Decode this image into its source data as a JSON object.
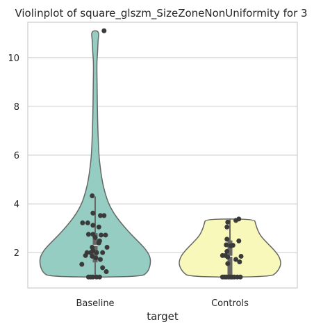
{
  "chart_data": {
    "type": "violin",
    "title": "Violinplot of square_glszm_SizeZoneNonUniformity for 3",
    "xlabel": "target",
    "ylabel": "",
    "categories": [
      "Baseline",
      "Controls"
    ],
    "ylim": [
      0.55,
      11.45
    ],
    "yticks": [
      2,
      4,
      6,
      8,
      10
    ],
    "grid": true,
    "colors": {
      "Baseline": "#96cdc2",
      "Controls": "#f8f8bb",
      "outline": "#666666",
      "points": "#3a3a3a",
      "box": "#666666"
    },
    "violins": [
      {
        "category": "Baseline",
        "halfwidth_profile": [
          [
            1.0,
            0.68
          ],
          [
            1.2,
            0.78
          ],
          [
            1.5,
            0.82
          ],
          [
            1.8,
            0.82
          ],
          [
            2.1,
            0.76
          ],
          [
            2.4,
            0.66
          ],
          [
            2.7,
            0.55
          ],
          [
            3.0,
            0.45
          ],
          [
            3.3,
            0.36
          ],
          [
            3.6,
            0.28
          ],
          [
            4.0,
            0.2
          ],
          [
            4.5,
            0.14
          ],
          [
            5.0,
            0.1
          ],
          [
            5.5,
            0.075
          ],
          [
            6.0,
            0.055
          ],
          [
            7.0,
            0.04
          ],
          [
            8.0,
            0.032
          ],
          [
            9.0,
            0.028
          ],
          [
            9.8,
            0.024
          ],
          [
            10.3,
            0.038
          ],
          [
            10.7,
            0.042
          ],
          [
            11.1,
            0.06
          ]
        ],
        "box": {
          "q1": 1.6,
          "median": 2.3,
          "q3": 2.8,
          "whisker_low": 1.0,
          "whisker_high": 4.3
        },
        "points": [
          [
            0.12,
            11.1
          ],
          [
            -0.04,
            4.33
          ],
          [
            -0.03,
            3.62
          ],
          [
            0.07,
            3.52
          ],
          [
            0.12,
            3.52
          ],
          [
            -0.17,
            3.22
          ],
          [
            -0.1,
            3.22
          ],
          [
            -0.03,
            3.12
          ],
          [
            0.05,
            3.05
          ],
          [
            -0.09,
            2.75
          ],
          [
            -0.03,
            2.75
          ],
          [
            0.08,
            2.72
          ],
          [
            0.14,
            2.72
          ],
          [
            0.0,
            2.62
          ],
          [
            0.06,
            2.48
          ],
          [
            0.05,
            2.4
          ],
          [
            -0.04,
            2.22
          ],
          [
            0.16,
            2.22
          ],
          [
            -0.03,
            2.08
          ],
          [
            -0.11,
            2.0
          ],
          [
            -0.06,
            2.0
          ],
          [
            0.02,
            2.0
          ],
          [
            0.1,
            2.0
          ],
          [
            -0.13,
            1.88
          ],
          [
            -0.04,
            1.85
          ],
          [
            0.01,
            1.78
          ],
          [
            0.07,
            1.72
          ],
          [
            -0.18,
            1.52
          ],
          [
            0.1,
            1.38
          ],
          [
            0.15,
            1.22
          ],
          [
            -0.09,
            1.0
          ],
          [
            -0.06,
            1.0
          ],
          [
            -0.03,
            1.0
          ],
          [
            0.02,
            1.0
          ],
          [
            0.06,
            1.0
          ]
        ]
      },
      {
        "category": "Controls",
        "halfwidth_profile": [
          [
            1.0,
            0.6
          ],
          [
            1.2,
            0.7
          ],
          [
            1.5,
            0.76
          ],
          [
            1.8,
            0.74
          ],
          [
            2.1,
            0.66
          ],
          [
            2.4,
            0.55
          ],
          [
            2.7,
            0.45
          ],
          [
            3.0,
            0.4
          ],
          [
            3.2,
            0.38
          ],
          [
            3.38,
            0.36
          ]
        ],
        "box": {
          "q1": 1.0,
          "median": 1.85,
          "q3": 2.5,
          "whisker_low": 1.0,
          "whisker_high": 3.38
        },
        "points": [
          [
            0.12,
            3.38
          ],
          [
            0.08,
            3.32
          ],
          [
            -0.03,
            3.25
          ],
          [
            -0.04,
            3.05
          ],
          [
            -0.04,
            2.55
          ],
          [
            0.12,
            2.48
          ],
          [
            -0.05,
            2.32
          ],
          [
            0.04,
            2.3
          ],
          [
            0.01,
            2.28
          ],
          [
            -0.04,
            2.05
          ],
          [
            -0.1,
            1.88
          ],
          [
            -0.06,
            1.88
          ],
          [
            -0.03,
            1.82
          ],
          [
            0.15,
            1.85
          ],
          [
            0.08,
            1.72
          ],
          [
            0.13,
            1.62
          ],
          [
            -0.03,
            1.55
          ],
          [
            -0.1,
            1.0
          ],
          [
            -0.07,
            1.0
          ],
          [
            -0.05,
            1.0
          ],
          [
            -0.02,
            1.0
          ],
          [
            0.01,
            1.0
          ],
          [
            0.03,
            1.0
          ],
          [
            0.06,
            1.0
          ],
          [
            0.1,
            1.0
          ],
          [
            0.14,
            1.0
          ]
        ]
      }
    ]
  }
}
